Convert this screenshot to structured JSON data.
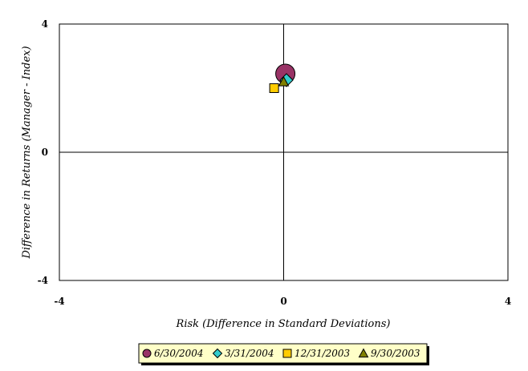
{
  "chart_data": {
    "type": "scatter",
    "xlabel": "Risk (Difference in Standard Deviations)",
    "ylabel": "Difference in Returns (Manager - Index)",
    "xlim": [
      -4,
      4
    ],
    "ylim": [
      -4,
      4
    ],
    "x_ticks": [
      "-4",
      "0",
      "4"
    ],
    "y_ticks": [
      "-4",
      "0",
      "4"
    ],
    "grid": false,
    "legend_position": "bottom",
    "series": [
      {
        "name": "6/30/2004",
        "marker": "circle",
        "color": "#993366",
        "x": 0.03,
        "y": 2.45
      },
      {
        "name": "3/31/2004",
        "marker": "diamond",
        "color": "#33CCCC",
        "x": 0.05,
        "y": 2.25
      },
      {
        "name": "12/31/2003",
        "marker": "square",
        "color": "#FFCC00",
        "x": -0.17,
        "y": 2.0
      },
      {
        "name": "9/30/2003",
        "marker": "triangle",
        "color": "#808000",
        "x": 0.0,
        "y": 2.2
      }
    ]
  }
}
